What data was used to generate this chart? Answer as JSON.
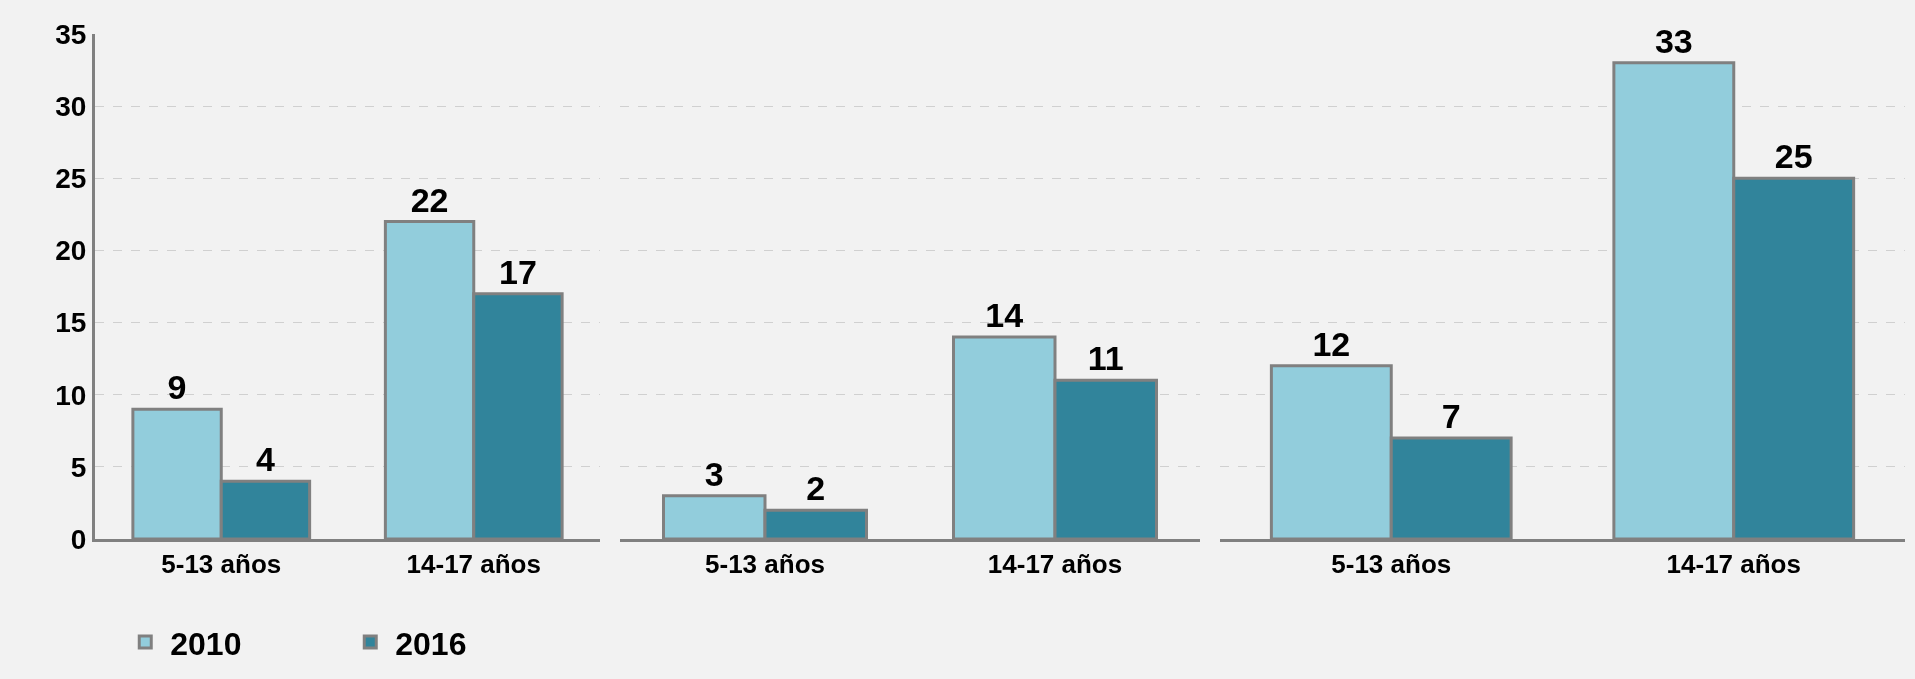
{
  "chart_data": [
    {
      "type": "bar",
      "categories": [
        "5-13 años",
        "14-17 años"
      ],
      "series": [
        {
          "name": "2010",
          "color": "#92cddc",
          "values": [
            9,
            22
          ]
        },
        {
          "name": "2016",
          "color": "#31849b",
          "values": [
            4,
            17
          ]
        }
      ],
      "ylim": [
        0,
        35
      ],
      "yticks": [
        0,
        5,
        10,
        15,
        20,
        25,
        30,
        35
      ],
      "grid": "y",
      "data_labels": true,
      "legend": "bottom left"
    },
    {
      "type": "bar",
      "categories": [
        "5-13 años",
        "14-17 años"
      ],
      "series": [
        {
          "color": "#92cddc",
          "values": [
            3,
            14
          ]
        },
        {
          "color": "#31849b",
          "values": [
            2,
            11
          ]
        }
      ],
      "ylim": [
        0,
        35
      ],
      "yticks": [
        0,
        5,
        10,
        15,
        20,
        25,
        30,
        35
      ],
      "grid": "y",
      "data_labels": true,
      "tick_labels": "x"
    },
    {
      "type": "bar",
      "categories": [
        "5-13 años",
        "14-17 años"
      ],
      "series": [
        {
          "color": "#92cddc",
          "values": [
            12,
            33
          ]
        },
        {
          "color": "#31849b",
          "values": [
            7,
            25
          ]
        }
      ],
      "ylim": [
        0,
        35
      ],
      "yticks": [
        0,
        5,
        10,
        15,
        20,
        25,
        30,
        35
      ],
      "grid": "y",
      "data_labels": true,
      "tick_labels": "x"
    }
  ]
}
